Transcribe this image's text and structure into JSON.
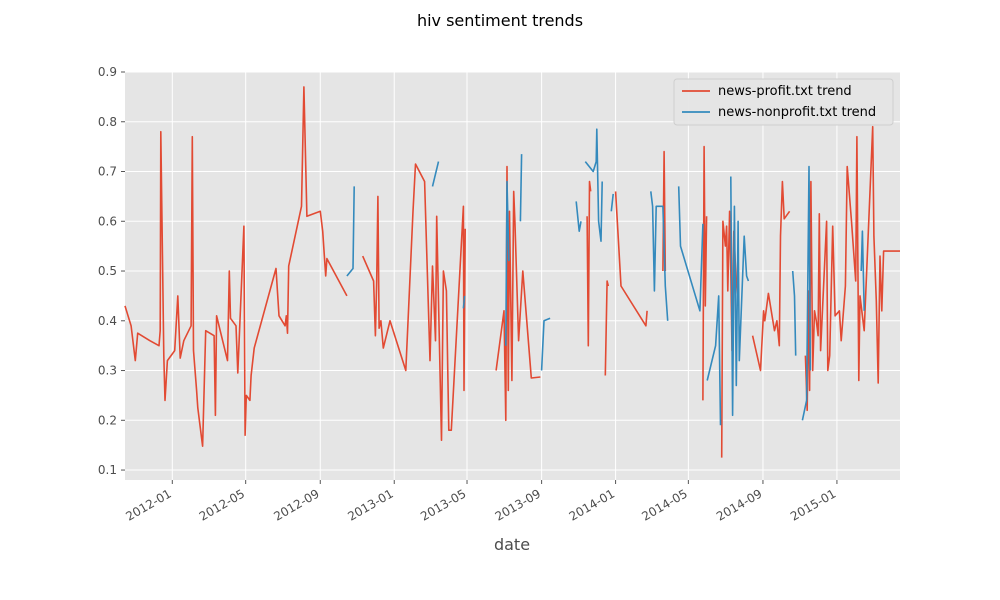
{
  "chart_data": {
    "type": "line",
    "title": "hiv sentiment trends",
    "xlabel": "date",
    "ylabel": "",
    "x_type": "date",
    "xlim": [
      "2011-10-15",
      "2015-04-15"
    ],
    "ylim": [
      0.08,
      0.9
    ],
    "x_ticks": [
      "2012-01",
      "2012-05",
      "2012-09",
      "2013-01",
      "2013-05",
      "2013-09",
      "2014-01",
      "2014-05",
      "2014-09",
      "2015-01"
    ],
    "y_ticks": [
      "0.1",
      "0.2",
      "0.3",
      "0.4",
      "0.5",
      "0.6",
      "0.7",
      "0.8",
      "0.9"
    ],
    "grid": true,
    "legend_position": "top-right",
    "series": [
      {
        "name": "news-profit.txt trend",
        "color": "#e24a33",
        "segments": [
          [
            [
              "2011-10-15",
              0.43
            ],
            [
              "2011-10-25",
              0.39
            ],
            [
              "2011-11-01",
              0.32
            ],
            [
              "2011-11-05",
              0.375
            ],
            [
              "2011-11-25",
              0.36
            ],
            [
              "2011-12-10",
              0.35
            ],
            [
              "2011-12-12",
              0.38
            ],
            [
              "2011-12-13",
              0.78
            ],
            [
              "2011-12-15",
              0.6
            ],
            [
              "2011-12-18",
              0.33
            ],
            [
              "2011-12-20",
              0.24
            ],
            [
              "2011-12-24",
              0.32
            ],
            [
              "2012-01-05",
              0.34
            ],
            [
              "2012-01-10",
              0.45
            ],
            [
              "2012-01-14",
              0.325
            ],
            [
              "2012-01-20",
              0.36
            ],
            [
              "2012-02-01",
              0.39
            ],
            [
              "2012-02-03",
              0.77
            ],
            [
              "2012-02-05",
              0.34
            ],
            [
              "2012-02-10",
              0.26
            ],
            [
              "2012-02-12",
              0.225
            ],
            [
              "2012-02-20",
              0.148
            ],
            [
              "2012-02-25",
              0.38
            ],
            [
              "2012-03-10",
              0.37
            ],
            [
              "2012-03-12",
              0.21
            ],
            [
              "2012-03-14",
              0.41
            ],
            [
              "2012-03-20",
              0.38
            ],
            [
              "2012-04-01",
              0.32
            ],
            [
              "2012-04-04",
              0.5
            ],
            [
              "2012-04-06",
              0.405
            ],
            [
              "2012-04-15",
              0.39
            ],
            [
              "2012-04-18",
              0.295
            ],
            [
              "2012-04-28",
              0.59
            ],
            [
              "2012-04-30",
              0.17
            ],
            [
              "2012-05-02",
              0.25
            ],
            [
              "2012-05-08",
              0.24
            ],
            [
              "2012-05-10",
              0.29
            ],
            [
              "2012-05-15",
              0.345
            ],
            [
              "2012-06-20",
              0.505
            ],
            [
              "2012-06-25",
              0.41
            ],
            [
              "2012-07-05",
              0.39
            ],
            [
              "2012-07-07",
              0.41
            ],
            [
              "2012-07-09",
              0.375
            ],
            [
              "2012-07-11",
              0.51
            ],
            [
              "2012-08-01",
              0.63
            ],
            [
              "2012-08-05",
              0.87
            ],
            [
              "2012-08-10",
              0.61
            ],
            [
              "2012-09-01",
              0.62
            ],
            [
              "2012-09-05",
              0.58
            ],
            [
              "2012-09-10",
              0.49
            ],
            [
              "2012-09-12",
              0.525
            ],
            [
              "2012-10-15",
              0.45
            ]
          ],
          [
            [
              "2012-11-10",
              0.53
            ],
            [
              "2012-11-28",
              0.48
            ],
            [
              "2012-12-01",
              0.37
            ],
            [
              "2012-12-03",
              0.48
            ],
            [
              "2012-12-05",
              0.65
            ],
            [
              "2012-12-07",
              0.385
            ],
            [
              "2012-12-10",
              0.4
            ],
            [
              "2012-12-14",
              0.345
            ],
            [
              "2012-12-25",
              0.4
            ],
            [
              "2013-01-20",
              0.3
            ],
            [
              "2013-02-01",
              0.62
            ],
            [
              "2013-02-05",
              0.715
            ],
            [
              "2013-02-20",
              0.68
            ],
            [
              "2013-03-01",
              0.32
            ],
            [
              "2013-03-05",
              0.51
            ],
            [
              "2013-03-10",
              0.36
            ],
            [
              "2013-03-12",
              0.61
            ],
            [
              "2013-03-15",
              0.44
            ],
            [
              "2013-03-20",
              0.16
            ],
            [
              "2013-03-23",
              0.5
            ],
            [
              "2013-03-28",
              0.46
            ],
            [
              "2013-04-01",
              0.18
            ],
            [
              "2013-04-05",
              0.18
            ],
            [
              "2013-04-25",
              0.63
            ],
            [
              "2013-04-26",
              0.26
            ],
            [
              "2013-04-28",
              0.585
            ]
          ],
          [
            [
              "2013-06-18",
              0.3
            ],
            [
              "2013-07-01",
              0.42
            ],
            [
              "2013-07-04",
              0.2
            ],
            [
              "2013-07-06",
              0.71
            ],
            [
              "2013-07-08",
              0.26
            ],
            [
              "2013-07-10",
              0.62
            ],
            [
              "2013-07-14",
              0.28
            ],
            [
              "2013-07-17",
              0.66
            ],
            [
              "2013-07-19",
              0.6
            ],
            [
              "2013-07-25",
              0.36
            ],
            [
              "2013-08-01",
              0.5
            ],
            [
              "2013-08-15",
              0.285
            ],
            [
              "2013-08-30",
              0.287
            ]
          ],
          [
            [
              "2013-11-15",
              0.61
            ],
            [
              "2013-11-17",
              0.35
            ],
            [
              "2013-11-19",
              0.68
            ],
            [
              "2013-11-21",
              0.66
            ]
          ],
          [
            [
              "2013-12-15",
              0.29
            ],
            [
              "2013-12-18",
              0.48
            ],
            [
              "2013-12-20",
              0.47
            ]
          ],
          [
            [
              "2014-01-01",
              0.66
            ],
            [
              "2014-01-10",
              0.47
            ],
            [
              "2014-02-20",
              0.39
            ],
            [
              "2014-02-22",
              0.42
            ]
          ],
          [
            [
              "2014-03-20",
              0.5
            ],
            [
              "2014-03-22",
              0.74
            ],
            [
              "2014-03-24",
              0.5
            ]
          ],
          [
            [
              "2014-05-25",
              0.24
            ],
            [
              "2014-05-27",
              0.75
            ],
            [
              "2014-05-29",
              0.43
            ],
            [
              "2014-05-31",
              0.61
            ]
          ],
          [
            [
              "2014-06-25",
              0.125
            ],
            [
              "2014-06-27",
              0.6
            ],
            [
              "2014-07-01",
              0.55
            ],
            [
              "2014-07-03",
              0.59
            ],
            [
              "2014-07-05",
              0.46
            ],
            [
              "2014-07-08",
              0.62
            ],
            [
              "2014-07-10",
              0.5
            ],
            [
              "2014-07-12",
              0.34
            ],
            [
              "2014-07-15",
              0.58
            ],
            [
              "2014-07-18",
              0.5
            ],
            [
              "2014-07-22",
              0.43
            ]
          ],
          [
            [
              "2014-08-15",
              0.37
            ],
            [
              "2014-08-28",
              0.3
            ],
            [
              "2014-09-02",
              0.42
            ],
            [
              "2014-09-04",
              0.4
            ],
            [
              "2014-09-10",
              0.455
            ],
            [
              "2014-09-20",
              0.38
            ],
            [
              "2014-09-24",
              0.4
            ],
            [
              "2014-09-28",
              0.35
            ],
            [
              "2014-09-30",
              0.57
            ],
            [
              "2014-10-03",
              0.68
            ],
            [
              "2014-10-06",
              0.605
            ],
            [
              "2014-10-15",
              0.62
            ]
          ],
          [
            [
              "2014-11-10",
              0.33
            ],
            [
              "2014-11-13",
              0.22
            ],
            [
              "2014-11-15",
              0.46
            ],
            [
              "2014-11-17",
              0.26
            ],
            [
              "2014-11-19",
              0.68
            ],
            [
              "2014-11-22",
              0.3
            ],
            [
              "2014-11-25",
              0.42
            ],
            [
              "2014-11-28",
              0.4
            ],
            [
              "2014-12-01",
              0.37
            ],
            [
              "2014-12-03",
              0.615
            ],
            [
              "2014-12-05",
              0.34
            ],
            [
              "2014-12-15",
              0.6
            ],
            [
              "2014-12-17",
              0.3
            ],
            [
              "2014-12-20",
              0.33
            ],
            [
              "2014-12-25",
              0.59
            ],
            [
              "2014-12-29",
              0.41
            ],
            [
              "2015-01-05",
              0.42
            ],
            [
              "2015-01-08",
              0.36
            ],
            [
              "2015-01-15",
              0.47
            ],
            [
              "2015-01-18",
              0.71
            ],
            [
              "2015-01-25",
              0.6
            ],
            [
              "2015-02-01",
              0.48
            ],
            [
              "2015-02-03",
              0.77
            ],
            [
              "2015-02-06",
              0.28
            ],
            [
              "2015-02-08",
              0.45
            ],
            [
              "2015-02-15",
              0.38
            ],
            [
              "2015-03-01",
              0.79
            ],
            [
              "2015-03-03",
              0.57
            ],
            [
              "2015-03-07",
              0.44
            ],
            [
              "2015-03-10",
              0.275
            ],
            [
              "2015-03-13",
              0.53
            ],
            [
              "2015-03-16",
              0.42
            ],
            [
              "2015-03-19",
              0.54
            ],
            [
              "2015-04-15",
              0.54
            ]
          ]
        ]
      },
      {
        "name": "news-nonprofit.txt trend",
        "color": "#348abd",
        "segments": [
          [
            [
              "2012-10-15",
              0.49
            ],
            [
              "2012-10-25",
              0.505
            ],
            [
              "2012-10-27",
              0.67
            ]
          ],
          [
            [
              "2013-03-05",
              0.67
            ],
            [
              "2013-03-15",
              0.72
            ]
          ],
          [
            [
              "2013-04-25",
              0.425
            ],
            [
              "2013-04-27",
              0.45
            ]
          ],
          [
            [
              "2013-07-04",
              0.35
            ],
            [
              "2013-07-06",
              0.68
            ],
            [
              "2013-07-09",
              0.52
            ]
          ],
          [
            [
              "2013-07-28",
              0.6
            ],
            [
              "2013-07-30",
              0.735
            ]
          ],
          [
            [
              "2013-09-01",
              0.3
            ],
            [
              "2013-09-05",
              0.4
            ],
            [
              "2013-09-15",
              0.405
            ]
          ],
          [
            [
              "2013-10-28",
              0.64
            ],
            [
              "2013-11-02",
              0.58
            ],
            [
              "2013-11-05",
              0.6
            ]
          ],
          [
            [
              "2013-11-12",
              0.72
            ],
            [
              "2013-11-25",
              0.7
            ],
            [
              "2013-11-30",
              0.72
            ],
            [
              "2013-12-01",
              0.785
            ],
            [
              "2013-12-04",
              0.6
            ],
            [
              "2013-12-08",
              0.56
            ],
            [
              "2013-12-10",
              0.68
            ]
          ],
          [
            [
              "2013-12-25",
              0.62
            ],
            [
              "2013-12-28",
              0.655
            ]
          ],
          [
            [
              "2014-02-28",
              0.66
            ],
            [
              "2014-03-03",
              0.63
            ],
            [
              "2014-03-06",
              0.46
            ],
            [
              "2014-03-09",
              0.63
            ],
            [
              "2014-03-20",
              0.63
            ],
            [
              "2014-03-24",
              0.47
            ],
            [
              "2014-03-28",
              0.4
            ]
          ],
          [
            [
              "2014-04-15",
              0.67
            ],
            [
              "2014-04-18",
              0.55
            ],
            [
              "2014-05-20",
              0.42
            ],
            [
              "2014-05-25",
              0.595
            ]
          ],
          [
            [
              "2014-06-01",
              0.28
            ],
            [
              "2014-06-15",
              0.35
            ],
            [
              "2014-06-20",
              0.45
            ],
            [
              "2014-06-23",
              0.19
            ]
          ],
          [
            [
              "2014-07-10",
              0.69
            ],
            [
              "2014-07-13",
              0.21
            ],
            [
              "2014-07-16",
              0.63
            ],
            [
              "2014-07-19",
              0.27
            ],
            [
              "2014-07-22",
              0.6
            ],
            [
              "2014-07-24",
              0.32
            ],
            [
              "2014-08-01",
              0.57
            ],
            [
              "2014-08-05",
              0.49
            ],
            [
              "2014-08-08",
              0.48
            ]
          ],
          [
            [
              "2014-10-20",
              0.5
            ],
            [
              "2014-10-23",
              0.45
            ],
            [
              "2014-10-25",
              0.33
            ]
          ],
          [
            [
              "2014-11-05",
              0.2
            ],
            [
              "2014-11-12",
              0.24
            ],
            [
              "2014-11-16",
              0.71
            ],
            [
              "2014-11-18",
              0.3
            ]
          ],
          [
            [
              "2015-02-10",
              0.5
            ],
            [
              "2015-02-12",
              0.58
            ],
            [
              "2015-02-15",
              0.42
            ]
          ]
        ]
      }
    ]
  }
}
